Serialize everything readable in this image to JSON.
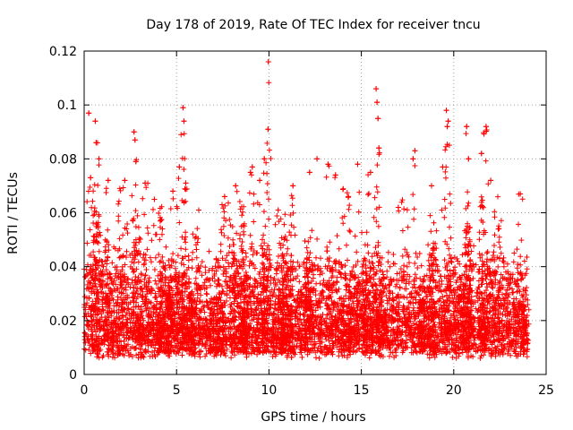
{
  "chart_data": {
    "type": "scatter",
    "title": "Day 178 of 2019, Rate Of TEC Index for receiver tncu",
    "xlabel": "GPS time / hours",
    "ylabel": "ROTI / TECUs",
    "xlim": [
      0,
      25
    ],
    "ylim": [
      0,
      0.12
    ],
    "xticks": [
      0,
      5,
      10,
      15,
      20,
      25
    ],
    "yticks": [
      0,
      0.02,
      0.04,
      0.06,
      0.08,
      0.1,
      0.12
    ],
    "xtick_labels": [
      "0",
      "5",
      "10",
      "15",
      "20",
      "25"
    ],
    "ytick_labels": [
      "0",
      "0.02",
      "0.04",
      "0.06",
      "0.08",
      "0.1",
      "0.12"
    ],
    "grid": true,
    "marker": "+",
    "color": "#ff0000",
    "data_range_x": [
      0,
      24
    ],
    "peaks": [
      {
        "x": 0.25,
        "y": 0.097
      },
      {
        "x": 0.35,
        "y": 0.073
      },
      {
        "x": 0.6,
        "y": 0.094
      },
      {
        "x": 0.65,
        "y": 0.086
      },
      {
        "x": 0.8,
        "y": 0.08
      },
      {
        "x": 1.3,
        "y": 0.072
      },
      {
        "x": 2.2,
        "y": 0.072
      },
      {
        "x": 2.7,
        "y": 0.09
      },
      {
        "x": 2.75,
        "y": 0.087
      },
      {
        "x": 2.8,
        "y": 0.079
      },
      {
        "x": 3.3,
        "y": 0.071
      },
      {
        "x": 3.8,
        "y": 0.065
      },
      {
        "x": 4.8,
        "y": 0.068
      },
      {
        "x": 5.15,
        "y": 0.077
      },
      {
        "x": 5.35,
        "y": 0.099
      },
      {
        "x": 5.4,
        "y": 0.094
      },
      {
        "x": 5.5,
        "y": 0.071
      },
      {
        "x": 6.2,
        "y": 0.061
      },
      {
        "x": 7.6,
        "y": 0.066
      },
      {
        "x": 8.2,
        "y": 0.07
      },
      {
        "x": 9.0,
        "y": 0.075
      },
      {
        "x": 9.1,
        "y": 0.077
      },
      {
        "x": 9.5,
        "y": 0.072
      },
      {
        "x": 9.75,
        "y": 0.08
      },
      {
        "x": 9.95,
        "y": 0.091
      },
      {
        "x": 9.97,
        "y": 0.116
      },
      {
        "x": 10.5,
        "y": 0.061
      },
      {
        "x": 11.3,
        "y": 0.07
      },
      {
        "x": 12.2,
        "y": 0.075
      },
      {
        "x": 12.6,
        "y": 0.08
      },
      {
        "x": 13.2,
        "y": 0.078
      },
      {
        "x": 13.6,
        "y": 0.074
      },
      {
        "x": 14.3,
        "y": 0.066
      },
      {
        "x": 14.8,
        "y": 0.078
      },
      {
        "x": 15.5,
        "y": 0.075
      },
      {
        "x": 15.8,
        "y": 0.106
      },
      {
        "x": 15.85,
        "y": 0.101
      },
      {
        "x": 15.9,
        "y": 0.095
      },
      {
        "x": 15.95,
        "y": 0.084
      },
      {
        "x": 17.0,
        "y": 0.062
      },
      {
        "x": 17.8,
        "y": 0.08
      },
      {
        "x": 17.9,
        "y": 0.083
      },
      {
        "x": 18.8,
        "y": 0.07
      },
      {
        "x": 19.4,
        "y": 0.077
      },
      {
        "x": 19.6,
        "y": 0.098
      },
      {
        "x": 19.65,
        "y": 0.092
      },
      {
        "x": 19.7,
        "y": 0.094
      },
      {
        "x": 20.7,
        "y": 0.092
      },
      {
        "x": 20.8,
        "y": 0.08
      },
      {
        "x": 21.5,
        "y": 0.082
      },
      {
        "x": 21.75,
        "y": 0.092
      },
      {
        "x": 22.0,
        "y": 0.072
      },
      {
        "x": 23.6,
        "y": 0.067
      }
    ]
  }
}
